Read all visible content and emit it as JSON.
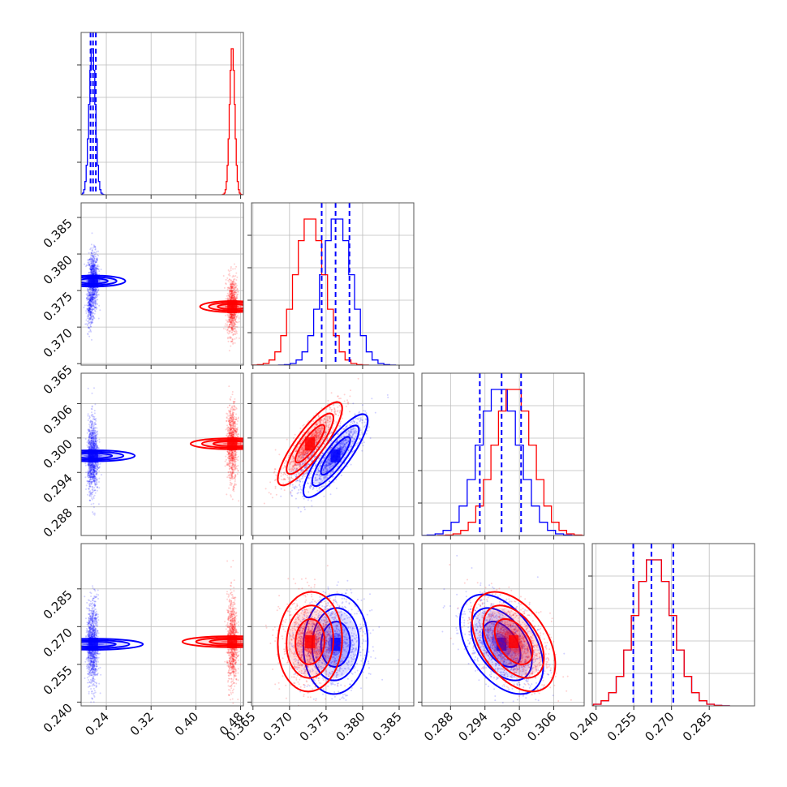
{
  "chart_data": {
    "type": "corner",
    "title": "",
    "params": [
      {
        "lim": [
          0.195,
          0.485
        ],
        "ticks": [
          0.24,
          0.32,
          0.4,
          0.48
        ],
        "ticklabels": [
          "0.24",
          "0.32",
          "0.40",
          "0.48"
        ]
      },
      {
        "lim": [
          0.3648,
          0.387
        ],
        "ticks": [
          0.365,
          0.37,
          0.375,
          0.38,
          0.385
        ],
        "ticklabels": [
          "0.365",
          "0.370",
          "0.375",
          "0.380",
          "0.385"
        ]
      },
      {
        "lim": [
          0.283,
          0.3113
        ],
        "ticks": [
          0.288,
          0.294,
          0.3,
          0.306
        ],
        "ticklabels": [
          "0.288",
          "0.294",
          "0.300",
          "0.306"
        ]
      },
      {
        "lim": [
          0.2385,
          0.303
        ],
        "ticks": [
          0.24,
          0.255,
          0.27,
          0.285
        ],
        "ticklabels": [
          "0.240",
          "0.255",
          "0.270",
          "0.285"
        ]
      }
    ],
    "series": [
      {
        "color": "#0000ff",
        "hist_bins": 20,
        "quantiles": [
          [
            0.2118,
            0.2163,
            0.2213
          ],
          [
            0.3744,
            0.3763,
            0.3782
          ],
          [
            0.2931,
            0.2969,
            0.3003
          ],
          [
            0.2548,
            0.262,
            0.2707
          ]
        ],
        "points": [
          {
            "mean": [
              0.2165,
              0.3763,
              0.2969,
              0.263
            ],
            "sd": [
              0.0045,
              0.002,
              0.0033,
              0.009
            ]
          },
          {
            "mean": [
              0.211,
              0.3725,
              0.296,
              0.264
            ],
            "sd": [
              0.003,
              0.0012,
              0.0025,
              0.006
            ]
          }
        ],
        "hist_peaks": [
          {
            "center": 0.215,
            "sd": 0.0055
          },
          {
            "center": 0.3765,
            "sd": 0.002
          },
          {
            "center": 0.2965,
            "sd": 0.0035
          },
          {
            "center": 0.263,
            "sd": 0.0075
          }
        ],
        "cov": {
          "0-1": 0.0,
          "0-2": 0.0,
          "0-3": 0.0,
          "1-2": 0.85,
          "1-3": 0.05,
          "2-3": -0.45
        }
      },
      {
        "color": "#ff0000",
        "hist_bins": 20,
        "quantiles": [],
        "points": [
          {
            "mean": [
              0.465,
              0.3728,
              0.299,
              0.264
            ],
            "sd": [
              0.0045,
              0.002,
              0.0033,
              0.009
            ]
          }
        ],
        "hist_peaks": [
          {
            "center": 0.465,
            "sd": 0.0045
          },
          {
            "center": 0.3728,
            "sd": 0.002
          },
          {
            "center": 0.299,
            "sd": 0.0033
          },
          {
            "center": 0.263,
            "sd": 0.0075
          }
        ],
        "cov": {
          "0-1": 0.0,
          "0-2": 0.0,
          "0-3": 0.0,
          "1-2": 0.85,
          "1-3": 0.05,
          "2-3": -0.45
        }
      }
    ],
    "grid": true
  }
}
